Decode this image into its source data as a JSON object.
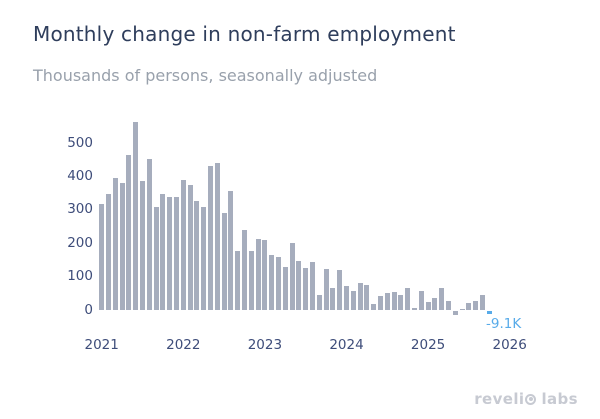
{
  "header": {
    "title": "Monthly change in non-farm employment",
    "subtitle": "Thousands of persons, seasonally adjusted"
  },
  "chart_data": {
    "type": "bar",
    "title": "Monthly change in non-farm employment",
    "subtitle": "Thousands of persons, seasonally adjusted",
    "ylabel": "Thousands of persons",
    "xlabel": "",
    "categories": [
      "2021-01",
      "2021-02",
      "2021-03",
      "2021-04",
      "2021-05",
      "2021-06",
      "2021-07",
      "2021-08",
      "2021-09",
      "2021-10",
      "2021-11",
      "2021-12",
      "2022-01",
      "2022-02",
      "2022-03",
      "2022-04",
      "2022-05",
      "2022-06",
      "2022-07",
      "2022-08",
      "2022-09",
      "2022-10",
      "2022-11",
      "2022-12",
      "2023-01",
      "2023-02",
      "2023-03",
      "2023-04",
      "2023-05",
      "2023-06",
      "2023-07",
      "2023-08",
      "2023-09",
      "2023-10",
      "2023-11",
      "2023-12",
      "2024-01",
      "2024-02",
      "2024-03",
      "2024-04",
      "2024-05",
      "2024-06",
      "2024-07",
      "2024-08",
      "2024-09",
      "2024-10",
      "2024-11",
      "2024-12",
      "2025-01",
      "2025-02",
      "2025-03",
      "2025-04",
      "2025-05",
      "2025-06",
      "2025-07",
      "2025-08",
      "2025-09",
      "2025-10"
    ],
    "values": [
      320,
      348,
      396,
      381,
      466,
      564,
      388,
      454,
      311,
      348,
      341,
      341,
      391,
      376,
      328,
      311,
      434,
      443,
      291,
      358,
      178,
      241,
      178,
      214,
      211,
      166,
      161,
      131,
      201,
      148,
      128,
      146,
      46,
      124,
      66,
      121,
      73,
      58,
      81,
      76,
      18,
      43,
      51,
      56,
      45,
      66,
      8,
      58,
      26,
      38,
      66,
      28,
      -14,
      5,
      22,
      28,
      45,
      -9.1
    ],
    "yticks": [
      0,
      100,
      200,
      300,
      400,
      500
    ],
    "xticks": [
      "2021",
      "2022",
      "2023",
      "2024",
      "2025",
      "2026"
    ],
    "ylim": [
      -30,
      560
    ],
    "grid": false,
    "legend": "none",
    "bar_color": "#a6adbd",
    "highlight_color": "#58abe9",
    "highlight_index": 57,
    "annotation": {
      "text": "-9.1K",
      "color": "#58abe9"
    }
  },
  "brand": {
    "name": "revelio labs",
    "left": "reveli",
    "right": "labs",
    "color": "#c7cad2"
  }
}
